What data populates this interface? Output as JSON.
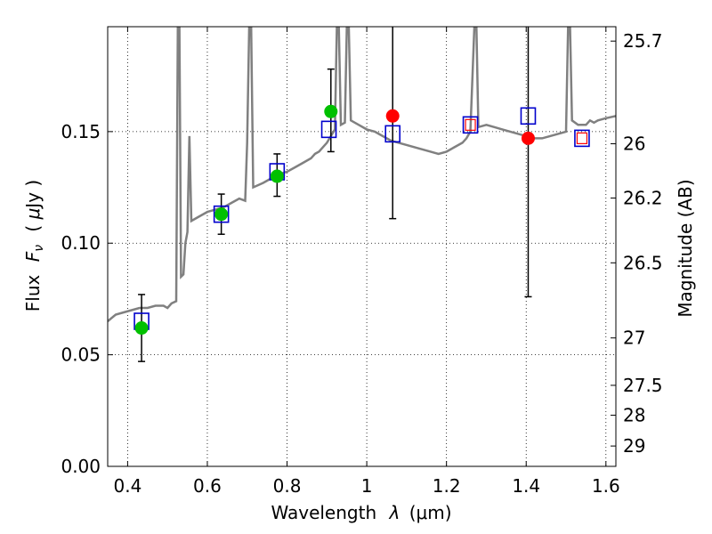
{
  "chart_data": {
    "type": "scatter",
    "xlabel_text": "Wavelength",
    "xlabel_math": "λ",
    "xlabel_unit": "(μm)",
    "ylabel_text": "Flux",
    "ylabel_math": "F",
    "ylabel_math_sub": "ν",
    "ylabel_unit_open": "( ",
    "ylabel_unit_mu": "μ",
    "ylabel_unit_rest": "Jy )",
    "y2label": "Magnitude (AB)",
    "xlim": [
      0.35,
      1.625
    ],
    "ylim": [
      0.0,
      0.197
    ],
    "x_ticks": [
      0.4,
      0.6,
      0.8,
      1.0,
      1.2,
      1.4,
      1.6
    ],
    "x_tick_labels": [
      "0.4",
      "0.6",
      "0.8",
      "1",
      "1.2",
      "1.4",
      "1.6"
    ],
    "y_ticks": [
      0.0,
      0.05,
      0.1,
      0.15
    ],
    "y_tick_labels": [
      "0.00",
      "0.05",
      "0.10",
      "0.15"
    ],
    "mag_ticks": [
      25.7,
      26,
      26.2,
      26.5,
      27,
      27.5,
      28,
      29
    ],
    "mag_tick_labels": [
      "25.7",
      "26",
      "26.2",
      "26.5",
      "27",
      "27.5",
      "28",
      "29"
    ],
    "grid": true,
    "colors": {
      "model": "#808080",
      "detection": "#00c000",
      "upper_limit": "#ff0000",
      "model_box": "#0000cc",
      "inner_box": "#ff0000"
    },
    "model_spectrum": [
      [
        0.35,
        0.065
      ],
      [
        0.37,
        0.068
      ],
      [
        0.39,
        0.069
      ],
      [
        0.41,
        0.07
      ],
      [
        0.43,
        0.071
      ],
      [
        0.45,
        0.071
      ],
      [
        0.47,
        0.072
      ],
      [
        0.49,
        0.072
      ],
      [
        0.5,
        0.071
      ],
      [
        0.51,
        0.073
      ],
      [
        0.522,
        0.074
      ],
      [
        0.526,
        0.197
      ],
      [
        0.53,
        0.197
      ],
      [
        0.534,
        0.085
      ],
      [
        0.54,
        0.086
      ],
      [
        0.545,
        0.1
      ],
      [
        0.55,
        0.105
      ],
      [
        0.555,
        0.148
      ],
      [
        0.56,
        0.11
      ],
      [
        0.58,
        0.112
      ],
      [
        0.6,
        0.114
      ],
      [
        0.62,
        0.115
      ],
      [
        0.64,
        0.116
      ],
      [
        0.66,
        0.118
      ],
      [
        0.68,
        0.12
      ],
      [
        0.695,
        0.119
      ],
      [
        0.7,
        0.145
      ],
      [
        0.705,
        0.197
      ],
      [
        0.71,
        0.197
      ],
      [
        0.715,
        0.125
      ],
      [
        0.74,
        0.127
      ],
      [
        0.76,
        0.129
      ],
      [
        0.78,
        0.131
      ],
      [
        0.8,
        0.132
      ],
      [
        0.82,
        0.134
      ],
      [
        0.84,
        0.136
      ],
      [
        0.86,
        0.138
      ],
      [
        0.87,
        0.14
      ],
      [
        0.88,
        0.141
      ],
      [
        0.89,
        0.143
      ],
      [
        0.9,
        0.145
      ],
      [
        0.91,
        0.148
      ],
      [
        0.92,
        0.151
      ],
      [
        0.925,
        0.197
      ],
      [
        0.93,
        0.197
      ],
      [
        0.935,
        0.153
      ],
      [
        0.945,
        0.154
      ],
      [
        0.95,
        0.197
      ],
      [
        0.955,
        0.197
      ],
      [
        0.96,
        0.155
      ],
      [
        0.98,
        0.153
      ],
      [
        1.0,
        0.151
      ],
      [
        1.02,
        0.15
      ],
      [
        1.04,
        0.148
      ],
      [
        1.06,
        0.146
      ],
      [
        1.08,
        0.145
      ],
      [
        1.1,
        0.144
      ],
      [
        1.12,
        0.143
      ],
      [
        1.14,
        0.142
      ],
      [
        1.16,
        0.141
      ],
      [
        1.18,
        0.14
      ],
      [
        1.2,
        0.141
      ],
      [
        1.22,
        0.143
      ],
      [
        1.24,
        0.145
      ],
      [
        1.25,
        0.147
      ],
      [
        1.26,
        0.15
      ],
      [
        1.27,
        0.197
      ],
      [
        1.275,
        0.197
      ],
      [
        1.28,
        0.152
      ],
      [
        1.3,
        0.153
      ],
      [
        1.32,
        0.152
      ],
      [
        1.34,
        0.151
      ],
      [
        1.36,
        0.15
      ],
      [
        1.38,
        0.149
      ],
      [
        1.4,
        0.148
      ],
      [
        1.42,
        0.147
      ],
      [
        1.44,
        0.147
      ],
      [
        1.46,
        0.148
      ],
      [
        1.48,
        0.149
      ],
      [
        1.5,
        0.15
      ],
      [
        1.505,
        0.197
      ],
      [
        1.51,
        0.197
      ],
      [
        1.515,
        0.155
      ],
      [
        1.53,
        0.153
      ],
      [
        1.55,
        0.153
      ],
      [
        1.56,
        0.155
      ],
      [
        1.57,
        0.154
      ],
      [
        1.58,
        0.155
      ],
      [
        1.6,
        0.156
      ],
      [
        1.625,
        0.157
      ]
    ],
    "observed_points": [
      {
        "x": 0.435,
        "y": 0.062,
        "yerr_low": 0.047,
        "yerr_high": 0.077,
        "kind": "detection"
      },
      {
        "x": 0.635,
        "y": 0.113,
        "yerr_low": 0.104,
        "yerr_high": 0.122,
        "kind": "detection"
      },
      {
        "x": 0.775,
        "y": 0.13,
        "yerr_low": 0.121,
        "yerr_high": 0.14,
        "kind": "detection"
      },
      {
        "x": 0.91,
        "y": 0.159,
        "yerr_low": 0.141,
        "yerr_high": 0.178,
        "kind": "detection"
      },
      {
        "x": 1.065,
        "y": 0.157,
        "yerr_low": 0.111,
        "yerr_high": 0.197,
        "kind": "upper_limit"
      },
      {
        "x": 1.405,
        "y": 0.147,
        "yerr_low": 0.076,
        "yerr_high": 0.197,
        "kind": "upper_limit"
      }
    ],
    "model_photometry": [
      {
        "x": 0.435,
        "y": 0.065
      },
      {
        "x": 0.635,
        "y": 0.113
      },
      {
        "x": 0.775,
        "y": 0.132
      },
      {
        "x": 0.905,
        "y": 0.151
      },
      {
        "x": 1.065,
        "y": 0.149
      },
      {
        "x": 1.26,
        "y": 0.153,
        "inner": true
      },
      {
        "x": 1.405,
        "y": 0.157
      },
      {
        "x": 1.54,
        "y": 0.147,
        "inner": true
      }
    ]
  }
}
